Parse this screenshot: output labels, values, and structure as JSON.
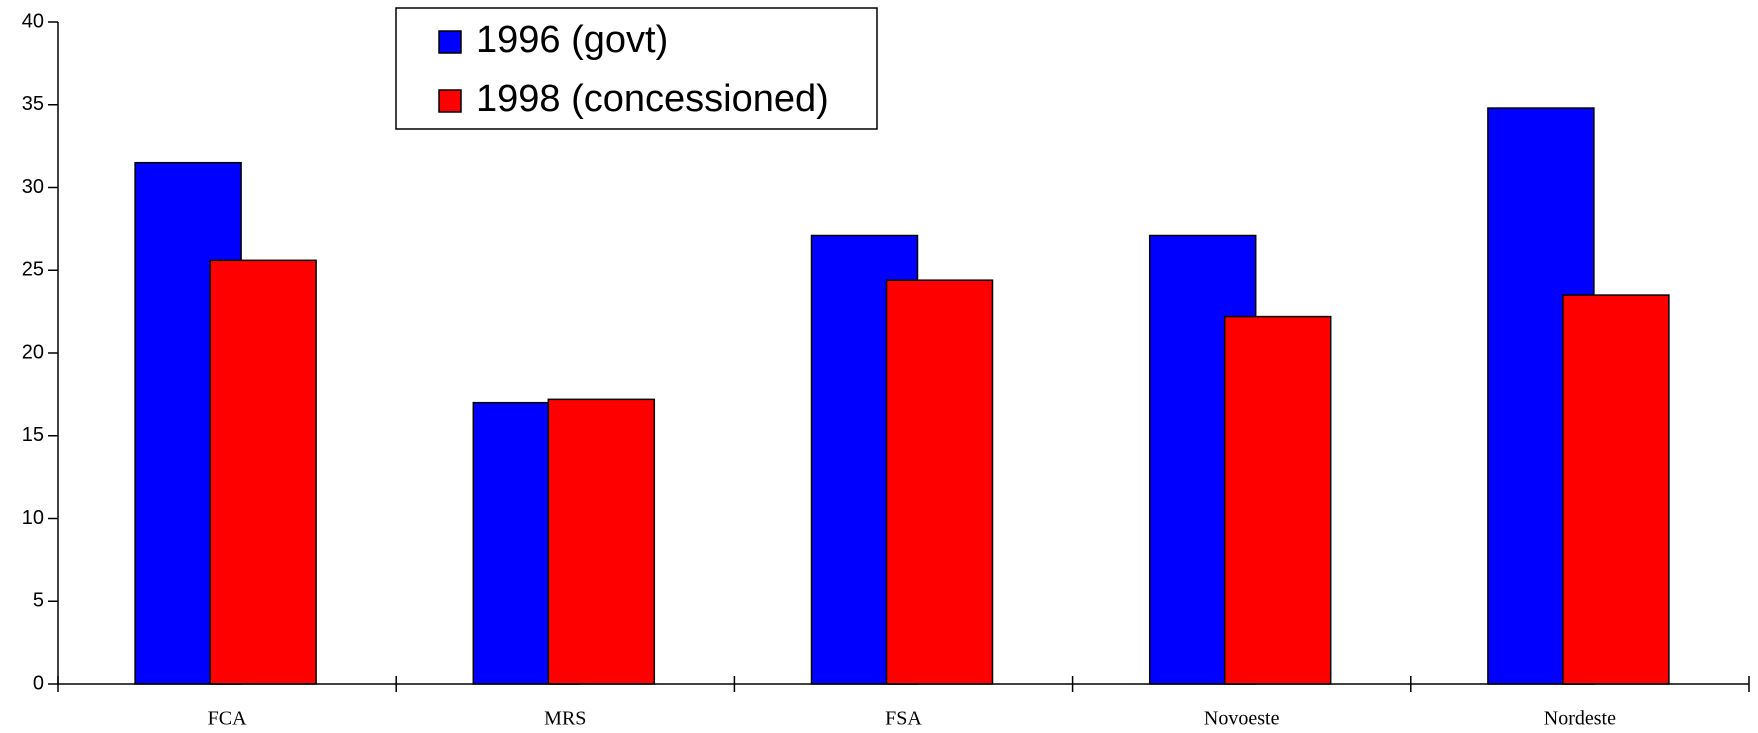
{
  "chart_data": {
    "type": "bar",
    "categories": [
      "FCA",
      "MRS",
      "FSA",
      "Novoeste",
      "Nordeste"
    ],
    "series": [
      {
        "name": "1996 (govt)",
        "color": "#0000ff",
        "values": [
          31.5,
          17.0,
          27.1,
          27.1,
          34.8
        ]
      },
      {
        "name": "1998 (concessioned)",
        "color": "#ff0000",
        "values": [
          25.6,
          17.2,
          24.4,
          22.2,
          23.5
        ]
      }
    ],
    "ylim": [
      0,
      40
    ],
    "yticks": [
      0,
      5,
      10,
      15,
      20,
      25,
      30,
      35,
      40
    ],
    "grid": false,
    "legend": "top"
  }
}
